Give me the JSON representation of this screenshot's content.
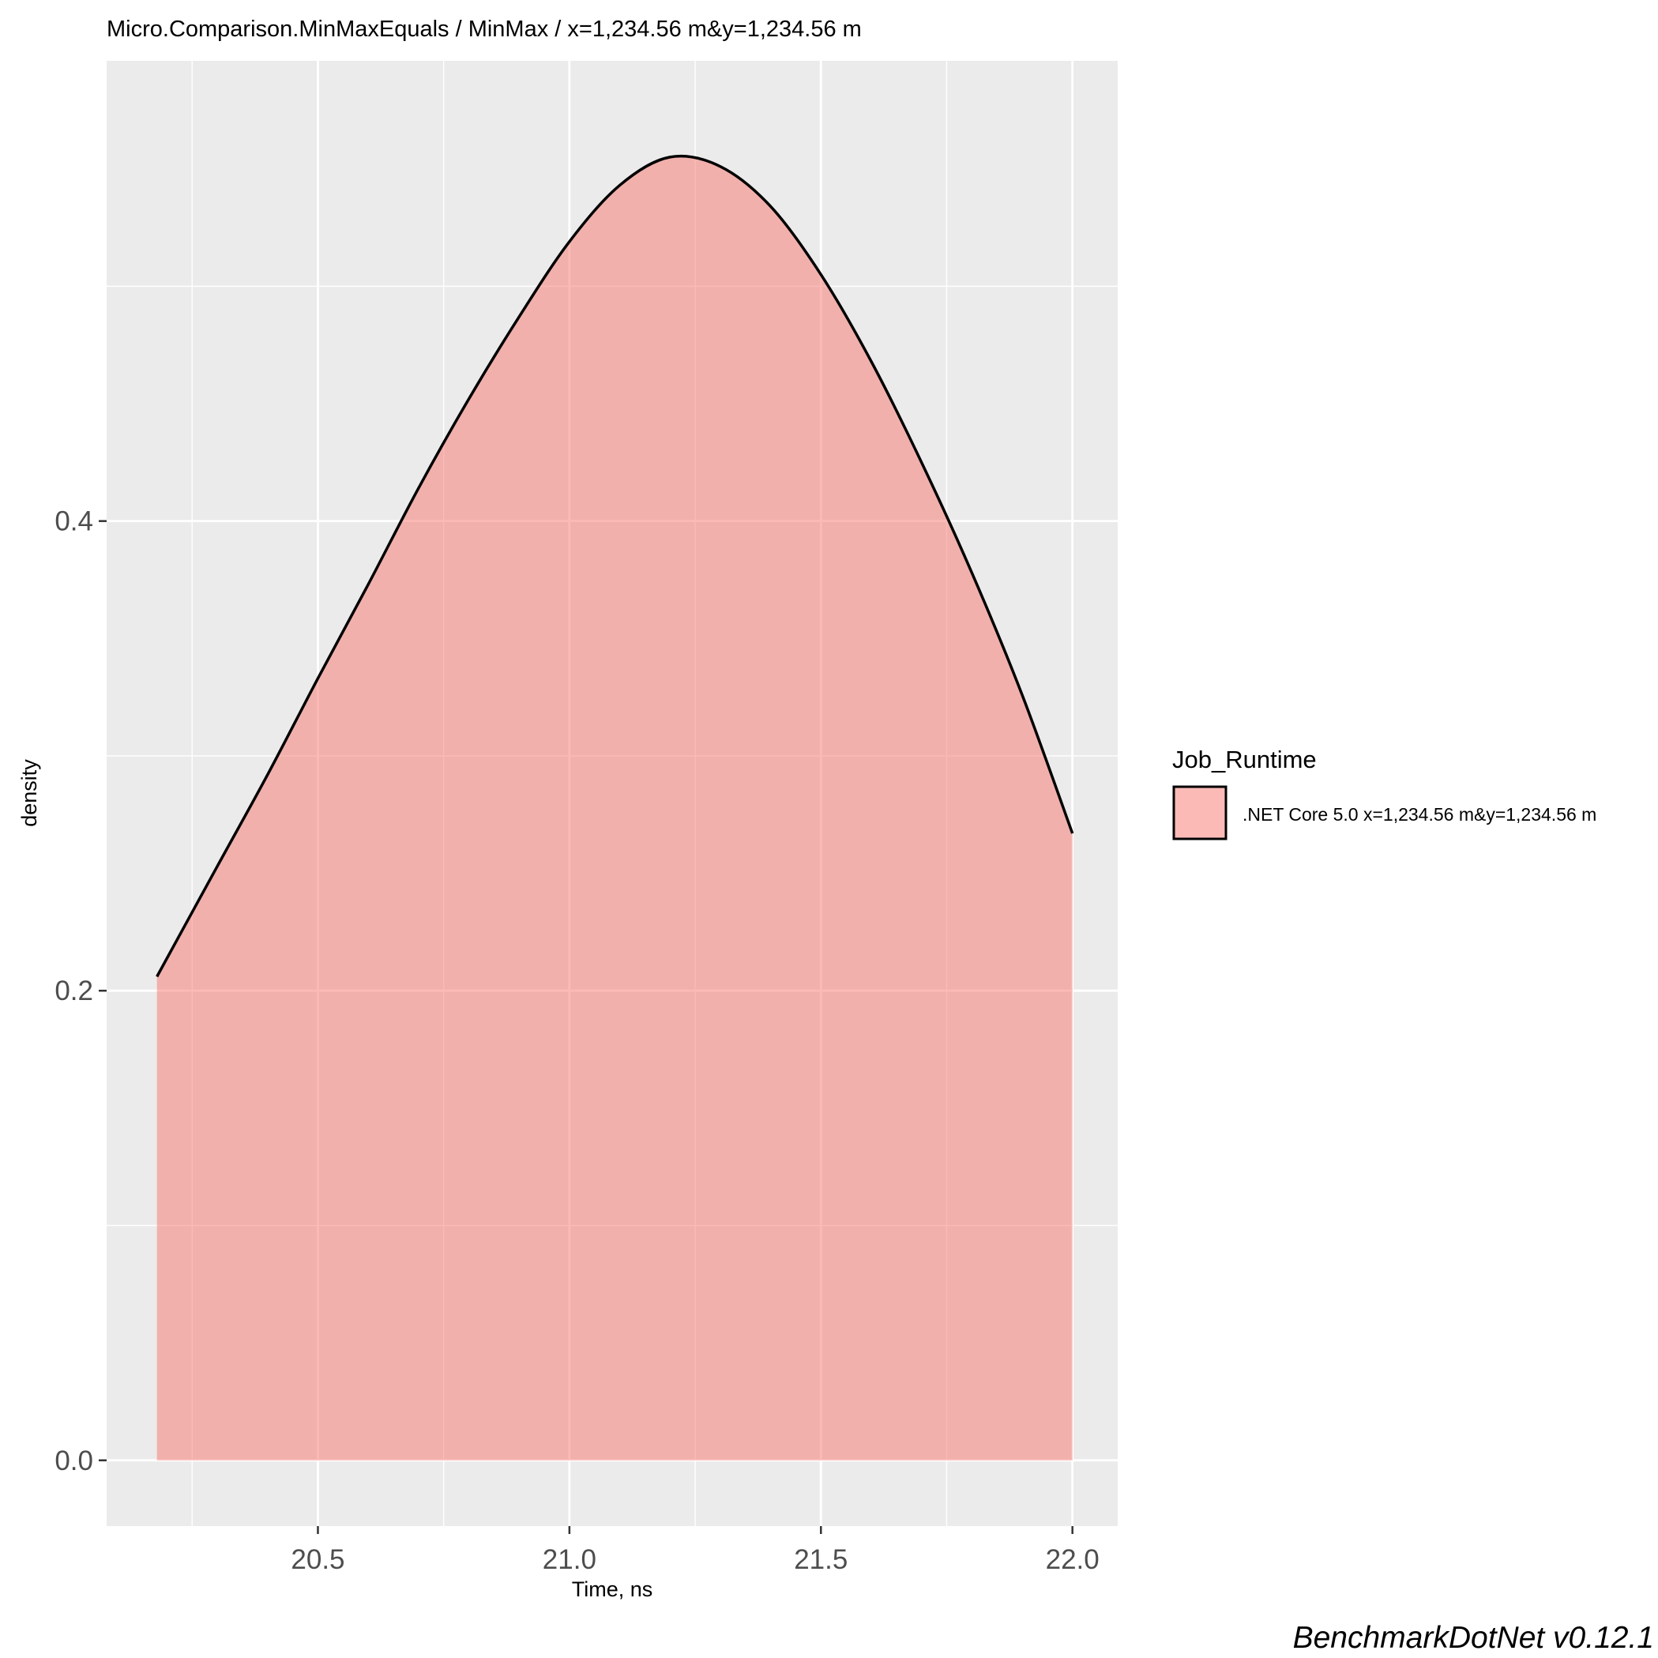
{
  "chart_data": {
    "type": "area",
    "title": "Micro.Comparison.MinMaxEquals / MinMax / x=1,234.56 m&y=1,234.56 m",
    "xlabel": "Time, ns",
    "ylabel": "density",
    "xlim": [
      20.08,
      22.09
    ],
    "ylim": [
      -0.028,
      0.596
    ],
    "x_ticks": [
      20.5,
      21.0,
      21.5,
      22.0
    ],
    "x_tick_labels": [
      "20.5",
      "21.0",
      "21.5",
      "22.0"
    ],
    "y_ticks": [
      0.0,
      0.2,
      0.4
    ],
    "y_tick_labels": [
      "0.0",
      "0.2",
      "0.4"
    ],
    "grid": true,
    "legend": {
      "title": "Job_Runtime",
      "position": "right",
      "entries": [
        ".NET Core 5.0 x=1,234.56 m&y=1,234.56 m"
      ]
    },
    "series": [
      {
        "name": ".NET Core 5.0 x=1,234.56 m&y=1,234.56 m",
        "color": "#F8766D",
        "x": [
          20.18,
          20.3,
          20.4,
          20.5,
          20.6,
          20.7,
          20.8,
          20.9,
          21.0,
          21.1,
          21.2,
          21.3,
          21.4,
          21.5,
          21.6,
          21.7,
          21.8,
          21.9,
          22.0
        ],
        "y": [
          0.206,
          0.253,
          0.292,
          0.333,
          0.373,
          0.414,
          0.452,
          0.487,
          0.519,
          0.543,
          0.555,
          0.551,
          0.534,
          0.505,
          0.468,
          0.425,
          0.378,
          0.326,
          0.267
        ]
      }
    ]
  },
  "caption": "BenchmarkDotNet v0.12.1"
}
